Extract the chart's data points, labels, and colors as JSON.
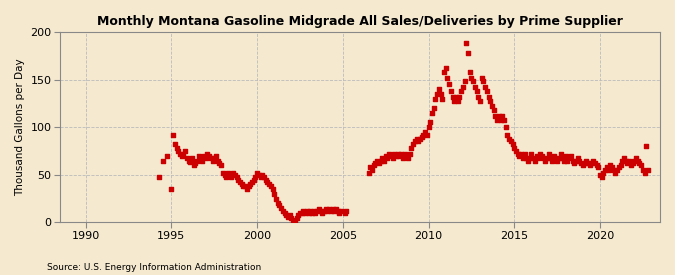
{
  "title": "Monthly Montana Gasoline Midgrade All Sales/Deliveries by Prime Supplier",
  "ylabel": "Thousand Gallons per Day",
  "source": "Source: U.S. Energy Information Administration",
  "background_color": "#f5e9d0",
  "plot_bg_color": "#f5e9d0",
  "dot_color": "#cc0000",
  "dot_size": 7,
  "xlim": [
    1988.5,
    2023.5
  ],
  "ylim": [
    0,
    200
  ],
  "yticks": [
    0,
    50,
    100,
    150,
    200
  ],
  "xticks": [
    1990,
    1995,
    2000,
    2005,
    2010,
    2015,
    2020
  ],
  "grid_color": "#bbbbbb",
  "data": [
    [
      1994.25,
      48
    ],
    [
      1994.5,
      65
    ],
    [
      1994.75,
      70
    ],
    [
      1995.0,
      35
    ],
    [
      1995.1,
      92
    ],
    [
      1995.2,
      82
    ],
    [
      1995.3,
      78
    ],
    [
      1995.4,
      75
    ],
    [
      1995.5,
      72
    ],
    [
      1995.6,
      70
    ],
    [
      1995.7,
      72
    ],
    [
      1995.8,
      75
    ],
    [
      1995.9,
      68
    ],
    [
      1996.0,
      65
    ],
    [
      1996.1,
      63
    ],
    [
      1996.2,
      68
    ],
    [
      1996.3,
      60
    ],
    [
      1996.4,
      62
    ],
    [
      1996.5,
      65
    ],
    [
      1996.6,
      70
    ],
    [
      1996.7,
      68
    ],
    [
      1996.8,
      65
    ],
    [
      1996.9,
      70
    ],
    [
      1997.0,
      68
    ],
    [
      1997.1,
      72
    ],
    [
      1997.2,
      70
    ],
    [
      1997.3,
      68
    ],
    [
      1997.4,
      65
    ],
    [
      1997.5,
      68
    ],
    [
      1997.6,
      70
    ],
    [
      1997.7,
      65
    ],
    [
      1997.8,
      62
    ],
    [
      1997.9,
      60
    ],
    [
      1998.0,
      52
    ],
    [
      1998.1,
      50
    ],
    [
      1998.2,
      48
    ],
    [
      1998.3,
      52
    ],
    [
      1998.4,
      50
    ],
    [
      1998.5,
      48
    ],
    [
      1998.6,
      52
    ],
    [
      1998.7,
      50
    ],
    [
      1998.8,
      48
    ],
    [
      1998.9,
      45
    ],
    [
      1999.0,
      42
    ],
    [
      1999.1,
      40
    ],
    [
      1999.2,
      38
    ],
    [
      1999.3,
      38
    ],
    [
      1999.4,
      35
    ],
    [
      1999.5,
      38
    ],
    [
      1999.6,
      40
    ],
    [
      1999.7,
      42
    ],
    [
      1999.8,
      45
    ],
    [
      1999.9,
      48
    ],
    [
      2000.0,
      52
    ],
    [
      2000.1,
      50
    ],
    [
      2000.2,
      48
    ],
    [
      2000.3,
      50
    ],
    [
      2000.4,
      48
    ],
    [
      2000.5,
      45
    ],
    [
      2000.6,
      42
    ],
    [
      2000.7,
      40
    ],
    [
      2000.8,
      38
    ],
    [
      2000.9,
      35
    ],
    [
      2001.0,
      30
    ],
    [
      2001.1,
      25
    ],
    [
      2001.2,
      20
    ],
    [
      2001.3,
      18
    ],
    [
      2001.4,
      15
    ],
    [
      2001.5,
      12
    ],
    [
      2001.6,
      10
    ],
    [
      2001.7,
      8
    ],
    [
      2001.8,
      6
    ],
    [
      2001.9,
      8
    ],
    [
      2002.0,
      5
    ],
    [
      2002.1,
      3
    ],
    [
      2002.2,
      2
    ],
    [
      2002.3,
      5
    ],
    [
      2002.4,
      8
    ],
    [
      2002.5,
      10
    ],
    [
      2002.6,
      10
    ],
    [
      2002.7,
      12
    ],
    [
      2002.8,
      10
    ],
    [
      2002.9,
      12
    ],
    [
      2003.0,
      10
    ],
    [
      2003.1,
      12
    ],
    [
      2003.2,
      10
    ],
    [
      2003.3,
      12
    ],
    [
      2003.4,
      10
    ],
    [
      2003.5,
      12
    ],
    [
      2003.6,
      14
    ],
    [
      2003.7,
      12
    ],
    [
      2003.8,
      10
    ],
    [
      2003.9,
      12
    ],
    [
      2004.0,
      14
    ],
    [
      2004.1,
      12
    ],
    [
      2004.2,
      14
    ],
    [
      2004.3,
      12
    ],
    [
      2004.4,
      14
    ],
    [
      2004.5,
      12
    ],
    [
      2004.6,
      14
    ],
    [
      2004.7,
      12
    ],
    [
      2004.8,
      10
    ],
    [
      2004.9,
      12
    ],
    [
      2005.1,
      10
    ],
    [
      2005.2,
      12
    ],
    [
      2006.5,
      52
    ],
    [
      2006.6,
      58
    ],
    [
      2006.7,
      55
    ],
    [
      2006.8,
      60
    ],
    [
      2006.9,
      62
    ],
    [
      2007.0,
      65
    ],
    [
      2007.1,
      62
    ],
    [
      2007.2,
      65
    ],
    [
      2007.3,
      68
    ],
    [
      2007.4,
      65
    ],
    [
      2007.5,
      70
    ],
    [
      2007.6,
      68
    ],
    [
      2007.7,
      72
    ],
    [
      2007.8,
      70
    ],
    [
      2007.9,
      68
    ],
    [
      2008.0,
      72
    ],
    [
      2008.1,
      70
    ],
    [
      2008.2,
      72
    ],
    [
      2008.3,
      70
    ],
    [
      2008.4,
      72
    ],
    [
      2008.5,
      68
    ],
    [
      2008.6,
      72
    ],
    [
      2008.7,
      70
    ],
    [
      2008.8,
      68
    ],
    [
      2008.9,
      72
    ],
    [
      2009.0,
      78
    ],
    [
      2009.1,
      82
    ],
    [
      2009.2,
      85
    ],
    [
      2009.3,
      88
    ],
    [
      2009.4,
      85
    ],
    [
      2009.5,
      88
    ],
    [
      2009.6,
      90
    ],
    [
      2009.7,
      92
    ],
    [
      2009.8,
      95
    ],
    [
      2009.9,
      92
    ],
    [
      2010.0,
      100
    ],
    [
      2010.1,
      105
    ],
    [
      2010.2,
      115
    ],
    [
      2010.3,
      120
    ],
    [
      2010.4,
      130
    ],
    [
      2010.5,
      135
    ],
    [
      2010.6,
      140
    ],
    [
      2010.7,
      135
    ],
    [
      2010.8,
      130
    ],
    [
      2010.9,
      158
    ],
    [
      2011.0,
      162
    ],
    [
      2011.1,
      152
    ],
    [
      2011.2,
      145
    ],
    [
      2011.3,
      138
    ],
    [
      2011.4,
      132
    ],
    [
      2011.5,
      128
    ],
    [
      2011.6,
      132
    ],
    [
      2011.7,
      128
    ],
    [
      2011.8,
      132
    ],
    [
      2011.9,
      138
    ],
    [
      2012.0,
      142
    ],
    [
      2012.1,
      148
    ],
    [
      2012.2,
      188
    ],
    [
      2012.3,
      178
    ],
    [
      2012.4,
      158
    ],
    [
      2012.5,
      152
    ],
    [
      2012.6,
      148
    ],
    [
      2012.7,
      142
    ],
    [
      2012.8,
      138
    ],
    [
      2012.9,
      132
    ],
    [
      2013.0,
      128
    ],
    [
      2013.1,
      152
    ],
    [
      2013.2,
      148
    ],
    [
      2013.3,
      142
    ],
    [
      2013.4,
      138
    ],
    [
      2013.5,
      132
    ],
    [
      2013.6,
      128
    ],
    [
      2013.7,
      122
    ],
    [
      2013.8,
      118
    ],
    [
      2013.9,
      112
    ],
    [
      2014.0,
      108
    ],
    [
      2014.1,
      112
    ],
    [
      2014.2,
      108
    ],
    [
      2014.3,
      112
    ],
    [
      2014.4,
      108
    ],
    [
      2014.5,
      100
    ],
    [
      2014.6,
      92
    ],
    [
      2014.7,
      88
    ],
    [
      2014.8,
      85
    ],
    [
      2014.9,
      82
    ],
    [
      2015.0,
      78
    ],
    [
      2015.1,
      75
    ],
    [
      2015.2,
      72
    ],
    [
      2015.3,
      70
    ],
    [
      2015.4,
      72
    ],
    [
      2015.5,
      68
    ],
    [
      2015.6,
      72
    ],
    [
      2015.7,
      68
    ],
    [
      2015.8,
      65
    ],
    [
      2015.9,
      68
    ],
    [
      2016.0,
      72
    ],
    [
      2016.1,
      68
    ],
    [
      2016.2,
      65
    ],
    [
      2016.3,
      70
    ],
    [
      2016.4,
      68
    ],
    [
      2016.5,
      72
    ],
    [
      2016.6,
      70
    ],
    [
      2016.7,
      68
    ],
    [
      2016.8,
      65
    ],
    [
      2016.9,
      68
    ],
    [
      2017.0,
      72
    ],
    [
      2017.1,
      68
    ],
    [
      2017.2,
      65
    ],
    [
      2017.3,
      70
    ],
    [
      2017.4,
      68
    ],
    [
      2017.5,
      65
    ],
    [
      2017.6,
      68
    ],
    [
      2017.7,
      72
    ],
    [
      2017.8,
      68
    ],
    [
      2017.9,
      65
    ],
    [
      2018.0,
      70
    ],
    [
      2018.1,
      65
    ],
    [
      2018.2,
      68
    ],
    [
      2018.3,
      70
    ],
    [
      2018.4,
      65
    ],
    [
      2018.5,
      62
    ],
    [
      2018.6,
      65
    ],
    [
      2018.7,
      68
    ],
    [
      2018.8,
      65
    ],
    [
      2018.9,
      62
    ],
    [
      2019.0,
      60
    ],
    [
      2019.1,
      62
    ],
    [
      2019.2,
      65
    ],
    [
      2019.3,
      62
    ],
    [
      2019.4,
      60
    ],
    [
      2019.5,
      62
    ],
    [
      2019.6,
      65
    ],
    [
      2019.7,
      62
    ],
    [
      2019.8,
      60
    ],
    [
      2019.9,
      58
    ],
    [
      2020.0,
      50
    ],
    [
      2020.1,
      48
    ],
    [
      2020.2,
      52
    ],
    [
      2020.3,
      55
    ],
    [
      2020.4,
      58
    ],
    [
      2020.5,
      55
    ],
    [
      2020.6,
      60
    ],
    [
      2020.7,
      58
    ],
    [
      2020.8,
      55
    ],
    [
      2020.9,
      52
    ],
    [
      2021.0,
      55
    ],
    [
      2021.1,
      58
    ],
    [
      2021.2,
      60
    ],
    [
      2021.3,
      65
    ],
    [
      2021.4,
      68
    ],
    [
      2021.5,
      65
    ],
    [
      2021.6,
      62
    ],
    [
      2021.7,
      65
    ],
    [
      2021.8,
      60
    ],
    [
      2021.9,
      62
    ],
    [
      2022.0,
      65
    ],
    [
      2022.1,
      68
    ],
    [
      2022.2,
      65
    ],
    [
      2022.3,
      62
    ],
    [
      2022.4,
      60
    ],
    [
      2022.5,
      55
    ],
    [
      2022.6,
      52
    ],
    [
      2022.7,
      80
    ],
    [
      2022.8,
      55
    ]
  ]
}
